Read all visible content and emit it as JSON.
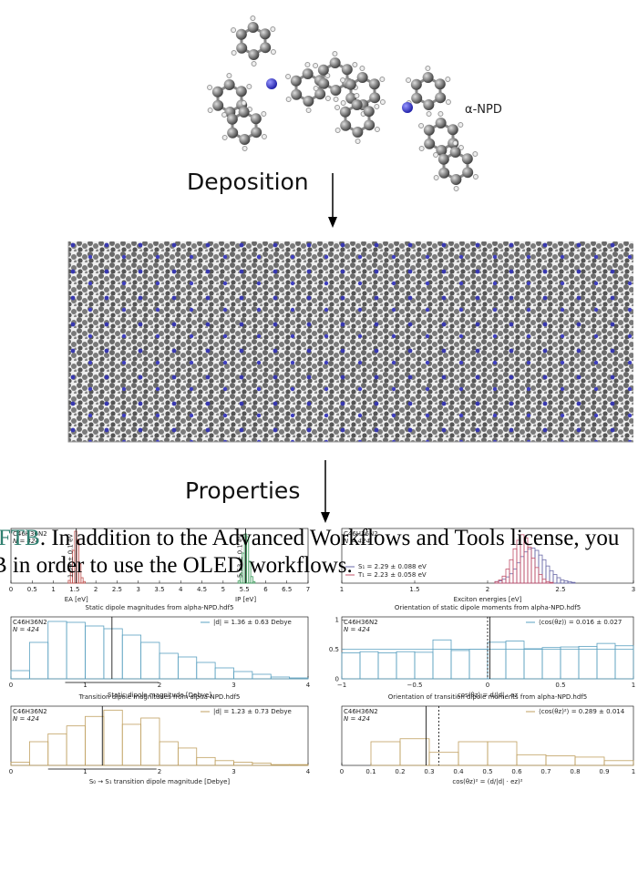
{
  "figure": {
    "molecule_label": "α-NPD",
    "step1": "Deposition",
    "step2": "Properties"
  },
  "overlay_text": {
    "link": "FTB",
    "line1": ". In addition to the Advanced Workflows and Tools license, you",
    "line2": "B in order to use the OLED workflows."
  },
  "chart_data": [
    {
      "type": "histogram",
      "annotations": [
        "C46H36N2",
        "N = 424"
      ],
      "xlim": [
        0,
        7
      ],
      "xticks": [
        0,
        0.5,
        1,
        1.5,
        2,
        2.5,
        3,
        3.5,
        4,
        4.5,
        5,
        5.5,
        6,
        6.5,
        7
      ],
      "ylim": [
        0,
        100
      ],
      "legend": "none",
      "series": [
        {
          "color": "#c0504d",
          "xlabel": "EA [eV]",
          "label": "1.54 ± 0.1 eV",
          "mean": 1.54,
          "bins": [
            1.35,
            1.4,
            1.45,
            1.5,
            1.55,
            1.6,
            1.65,
            1.7,
            1.75
          ],
          "values": [
            5,
            20,
            60,
            95,
            80,
            35,
            10,
            3
          ]
        },
        {
          "color": "#3a9a5a",
          "xlabel": "IP [eV]",
          "label": "5.53 ± 0.1 eV",
          "mean": 5.53,
          "bins": [
            5.35,
            5.4,
            5.45,
            5.5,
            5.55,
            5.6,
            5.65,
            5.7,
            5.75
          ],
          "values": [
            4,
            18,
            55,
            90,
            85,
            40,
            12,
            3
          ]
        }
      ]
    },
    {
      "type": "histogram",
      "annotations": [
        "C46H36N2",
        "N = 424"
      ],
      "xlabel": "Exciton energies [eV]",
      "xlim": [
        1,
        3
      ],
      "xticks": [
        1,
        1.5,
        2,
        2.5,
        3
      ],
      "ylim": [
        0,
        70
      ],
      "legend": "lower left",
      "series": [
        {
          "name": "S₁ = 2.29 ± 0.088 eV",
          "color": "#6a6aa8",
          "bins": [
            2.05,
            2.075,
            2.1,
            2.125,
            2.15,
            2.175,
            2.2,
            2.225,
            2.25,
            2.275,
            2.3,
            2.325,
            2.35,
            2.375,
            2.4,
            2.425,
            2.45,
            2.475,
            2.5,
            2.525,
            2.55,
            2.575,
            2.6
          ],
          "values": [
            2,
            3,
            5,
            8,
            12,
            18,
            26,
            34,
            40,
            44,
            45,
            42,
            36,
            30,
            22,
            16,
            11,
            7,
            4,
            3,
            2,
            1
          ]
        },
        {
          "name": "T₁ = 2.23 ± 0.058 eV",
          "color": "#c0506a",
          "bins": [
            2.05,
            2.075,
            2.1,
            2.125,
            2.15,
            2.175,
            2.2,
            2.225,
            2.25,
            2.275,
            2.3,
            2.325,
            2.35,
            2.375,
            2.4,
            2.425,
            2.45
          ],
          "values": [
            2,
            4,
            9,
            18,
            30,
            44,
            55,
            62,
            58,
            46,
            32,
            20,
            11,
            5,
            2,
            1
          ]
        }
      ]
    },
    {
      "type": "histogram",
      "title": "Static dipole magnitudes from alpha-NPD.hdf5",
      "annotations": [
        "C46H36N2",
        "N = 424"
      ],
      "xlabel": "Static dipole magnitude [Debye]",
      "xlim": [
        0,
        4
      ],
      "xticks": [
        0,
        1,
        2,
        3,
        4
      ],
      "ylim": [
        0,
        68
      ],
      "legend": "upper right",
      "mean": 1.36,
      "errorbar": [
        0.73,
        1.99
      ],
      "series": [
        {
          "name": "|d| = 1.36 ± 0.63 Debye",
          "color": "#5aa0c0",
          "bins": [
            0,
            0.25,
            0.5,
            0.75,
            1,
            1.25,
            1.5,
            1.75,
            2,
            2.25,
            2.5,
            2.75,
            3,
            3.25,
            3.5,
            3.75,
            4
          ],
          "values": [
            9,
            40,
            63,
            62,
            58,
            55,
            48,
            40,
            28,
            24,
            18,
            12,
            8,
            5,
            2,
            1
          ]
        }
      ]
    },
    {
      "type": "histogram",
      "title": "Orientation of static dipole moments from alpha-NPD.hdf5",
      "annotations": [
        "C46H36N2",
        "N = 424"
      ],
      "xlabel": "cos(θz) = d/|d| · ez",
      "xlim": [
        -1,
        1
      ],
      "xticks": [
        {
          "value": -1,
          "label": "−1"
        },
        {
          "value": -0.5,
          "label": "−0.5"
        },
        0,
        0.5,
        1
      ],
      "ylim": [
        0,
        1.05
      ],
      "yticks": [
        0,
        0.5,
        1
      ],
      "legend": "upper right",
      "mean": 0.016,
      "reference": 0,
      "hline": 0.5,
      "series": [
        {
          "name": "⟨cos(θz)⟩ = 0.016 ± 0.027",
          "color": "#5aa0c0",
          "bins": [
            -1,
            -0.875,
            -0.75,
            -0.625,
            -0.5,
            -0.375,
            -0.25,
            -0.125,
            0,
            0.125,
            0.25,
            0.375,
            0.5,
            0.625,
            0.75,
            0.875,
            1
          ],
          "values": [
            0.44,
            0.46,
            0.44,
            0.46,
            0.45,
            0.66,
            0.48,
            0.5,
            0.62,
            0.64,
            0.51,
            0.53,
            0.54,
            0.55,
            0.6,
            0.56
          ]
        }
      ]
    },
    {
      "type": "histogram",
      "title": "Transition dipole magnitudes from alpha-NPD.hdf5",
      "annotations": [
        "C46H36N2",
        "N = 424"
      ],
      "xlabel": "S₀ → S₁ transition dipole magnitude [Debye]",
      "xlim": [
        0,
        4
      ],
      "xticks": [
        0,
        1,
        2,
        3,
        4
      ],
      "ylim": [
        0,
        75
      ],
      "legend": "upper right",
      "mean": 1.23,
      "errorbar": [
        0.5,
        1.96
      ],
      "series": [
        {
          "name": "|d| = 1.23 ± 0.73 Debye",
          "color": "#c0a060",
          "bins": [
            0,
            0.25,
            0.5,
            0.75,
            1,
            1.25,
            1.5,
            1.75,
            2,
            2.25,
            2.5,
            2.75,
            3,
            3.25,
            3.5,
            3.75,
            4
          ],
          "values": [
            4,
            30,
            40,
            50,
            62,
            70,
            52,
            60,
            30,
            22,
            10,
            6,
            4,
            3,
            1,
            1
          ]
        }
      ]
    },
    {
      "type": "histogram",
      "title": "Orientation of transition dipole moments from alpha-NPD.hdf5",
      "annotations": [
        "C46H36N2",
        "N = 424"
      ],
      "xlabel": "cos(θz)² = (d/|d| · ez)²",
      "xlim": [
        0,
        1
      ],
      "xticks": [
        0,
        0.1,
        0.2,
        0.3,
        0.4,
        0.5,
        0.6,
        0.7,
        0.8,
        0.9,
        1
      ],
      "ylim": [
        0,
        100
      ],
      "legend": "upper right",
      "mean": 0.289,
      "reference": 0.333,
      "series": [
        {
          "name": "⟨cos(θz)²⟩ = 0.289 ± 0.014",
          "color": "#c0a060",
          "bins": [
            0,
            0.1,
            0.2,
            0.3,
            0.4,
            0.5,
            0.6,
            0.7,
            0.8,
            0.9,
            1
          ],
          "values": [
            0,
            40,
            45,
            22,
            40,
            40,
            18,
            16,
            14,
            8
          ]
        }
      ]
    }
  ]
}
